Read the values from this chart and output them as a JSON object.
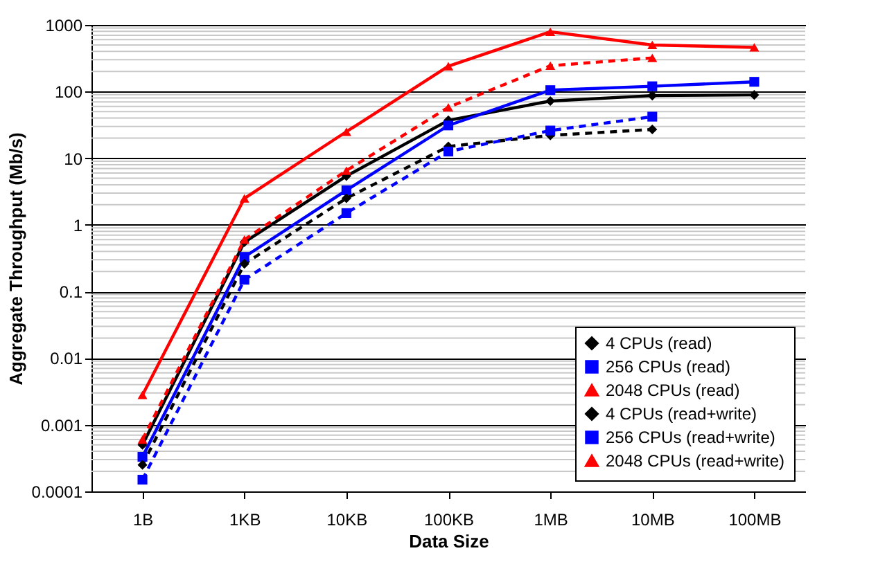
{
  "chart_data": {
    "type": "line",
    "xlabel": "Data Size",
    "ylabel": "Aggregate Throughput (Mb/s)",
    "categories": [
      "1B",
      "1KB",
      "10KB",
      "100KB",
      "1MB",
      "10MB",
      "100MB"
    ],
    "series": [
      {
        "name": "4 CPUs (read)",
        "color": "#000000",
        "marker": "diamond",
        "line_style": "solid",
        "values": [
          0.0005,
          0.55,
          5.4,
          37,
          72,
          87,
          89
        ]
      },
      {
        "name": "256 CPUs (read)",
        "color": "#0000ff",
        "marker": "square",
        "line_style": "solid",
        "values": [
          0.00033,
          0.33,
          3.3,
          31,
          105,
          120,
          140
        ]
      },
      {
        "name": "2048 CPUs (read)",
        "color": "#ff0000",
        "marker": "triangle",
        "line_style": "solid",
        "values": [
          0.0028,
          2.5,
          25,
          240,
          790,
          500,
          460
        ]
      },
      {
        "name": "4 CPUs (read+write)",
        "color": "#000000",
        "marker": "diamond",
        "line_style": "dashed",
        "values": [
          0.00025,
          0.26,
          2.5,
          15,
          22,
          27,
          null
        ]
      },
      {
        "name": "256 CPUs (read+write)",
        "color": "#0000ff",
        "marker": "square",
        "line_style": "dashed",
        "values": [
          0.00015,
          0.15,
          1.5,
          12.6,
          26,
          42,
          null
        ]
      },
      {
        "name": "2048 CPUs (read+write)",
        "color": "#ff0000",
        "marker": "triangle",
        "line_style": "dashed",
        "values": [
          0.0006,
          0.6,
          6.5,
          58,
          244,
          320,
          null
        ]
      }
    ],
    "log": "y",
    "ylim": [
      0.0001,
      1000
    ],
    "yticks": [
      0.0001,
      0.001,
      0.01,
      0.1,
      1,
      10,
      100,
      1000
    ],
    "grid": "y",
    "legend": "bottom right"
  }
}
